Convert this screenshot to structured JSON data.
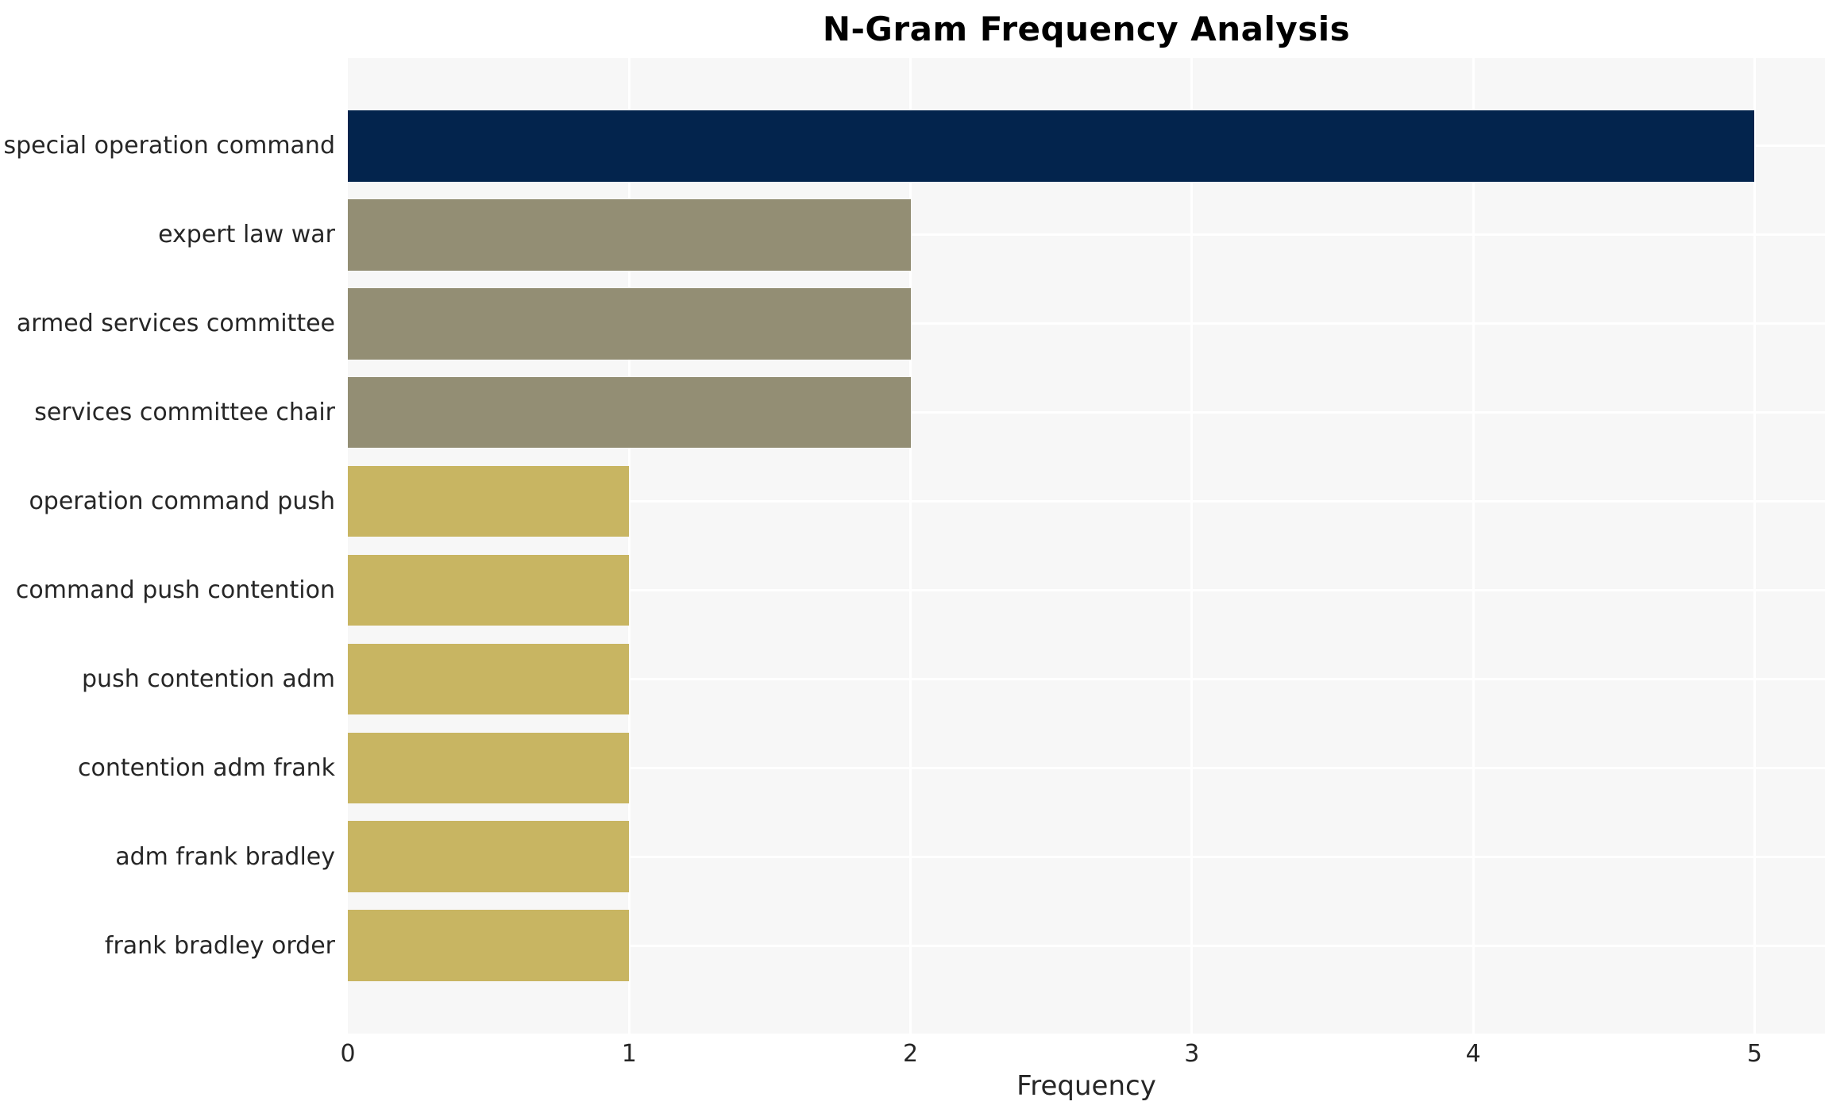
{
  "chart_data": {
    "type": "bar",
    "orientation": "horizontal",
    "title": "N-Gram Frequency Analysis",
    "xlabel": "Frequency",
    "ylabel": "",
    "categories": [
      "special operation command",
      "expert law war",
      "armed services committee",
      "services committee chair",
      "operation command push",
      "command push contention",
      "push contention adm",
      "contention adm frank",
      "adm frank bradley",
      "frank bradley order"
    ],
    "values": [
      5,
      2,
      2,
      2,
      1,
      1,
      1,
      1,
      1,
      1
    ],
    "x_ticks": [
      0,
      1,
      2,
      3,
      4,
      5
    ],
    "xlim": [
      0,
      5.25
    ],
    "grid": true,
    "legend_position": "none",
    "bar_colors": [
      "#03244D",
      "#938E74",
      "#938E74",
      "#938E74",
      "#C8B562",
      "#C8B562",
      "#C8B562",
      "#C8B562",
      "#C8B562",
      "#C8B562"
    ],
    "colors": {
      "navy": "#03244D",
      "taupe": "#938E74",
      "khaki": "#C8B562",
      "plot_background": "#F7F7F7",
      "gridline": "#FFFFFF",
      "tick_text": "#262626",
      "title_text": "#000000"
    }
  }
}
